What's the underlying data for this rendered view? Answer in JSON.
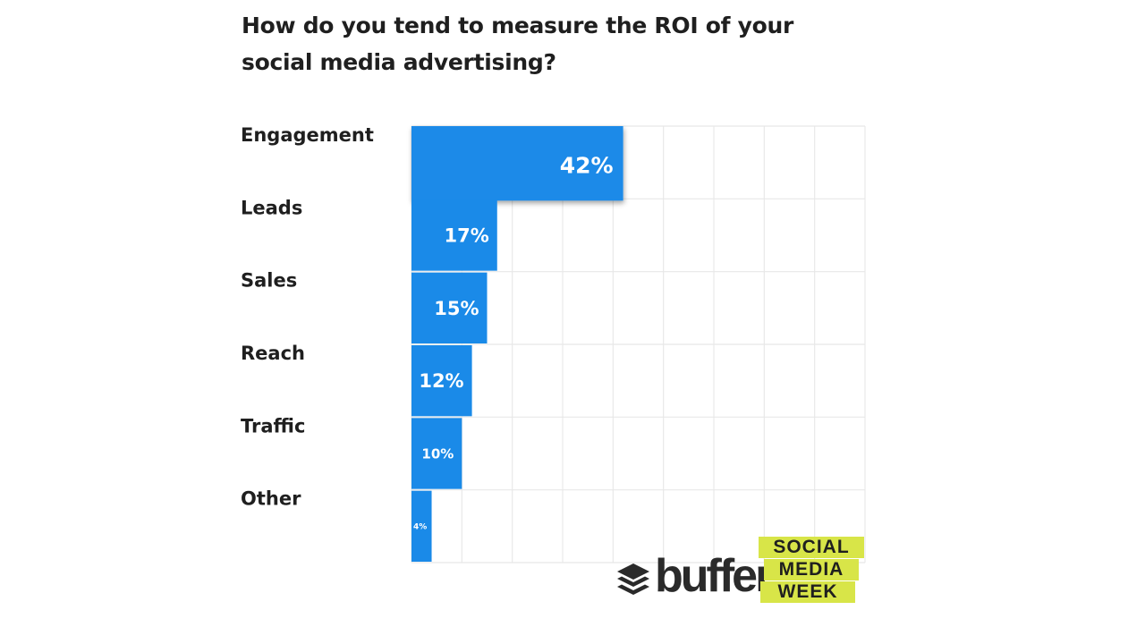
{
  "chart_data": {
    "type": "bar",
    "orientation": "horizontal",
    "title": "How do you tend to measure the ROI of your social media advertising?",
    "title_lines": [
      "How do you tend to measure the ROI of your",
      "social media advertising?"
    ],
    "categories": [
      "Engagement",
      "Leads",
      "Sales",
      "Reach",
      "Traffic",
      "Other"
    ],
    "values": [
      42,
      17,
      15,
      12,
      10,
      4
    ],
    "value_labels": [
      "42%",
      "17%",
      "15%",
      "12%",
      "10%",
      "4%"
    ],
    "xlim": [
      0,
      90
    ],
    "grid": true,
    "bar_color": "#1a8ae8",
    "label_color": "#ffffff",
    "grid_color": "#e8e8e8"
  },
  "branding": {
    "buffer": "buffer",
    "smw": [
      "SOCIAL",
      "MEDIA",
      "WEEK"
    ],
    "smw_color": "#d8e548"
  }
}
